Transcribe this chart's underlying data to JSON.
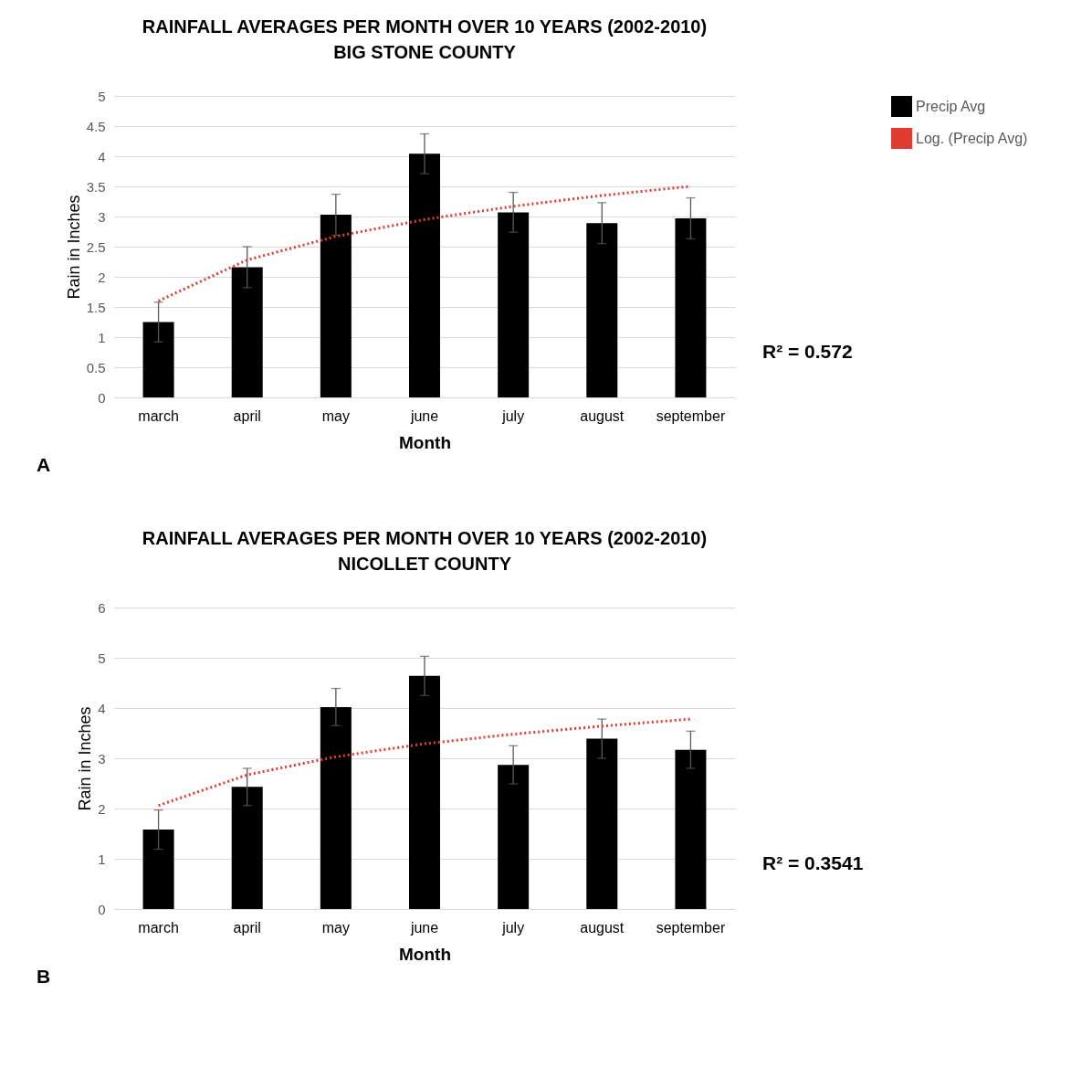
{
  "chart_data": [
    {
      "type": "bar",
      "title": "RAINFALL AVERAGES PER MONTH OVER 10 YEARS (2002-2010)",
      "subtitle": "BIG STONE COUNTY",
      "xlabel": "Month",
      "ylabel": "Rain in Inches",
      "categories": [
        "march",
        "april",
        "may",
        "june",
        "july",
        "august",
        "september"
      ],
      "series": [
        {
          "name": "Precip Avg",
          "color": "#000000",
          "values": [
            1.25,
            2.16,
            3.03,
            4.04,
            3.07,
            2.89,
            2.97
          ],
          "errors": [
            0.33,
            0.34,
            0.34,
            0.33,
            0.33,
            0.34,
            0.34
          ]
        },
        {
          "name": "Log. (Precip Avg)",
          "type": "line",
          "color": "#e03c31",
          "line_style": "dotted",
          "values": [
            1.6,
            2.28,
            2.67,
            2.95,
            3.17,
            3.35,
            3.5
          ]
        }
      ],
      "ylim": [
        0,
        5
      ],
      "yticks": [
        0,
        0.5,
        1,
        1.5,
        2,
        2.5,
        3,
        3.5,
        4,
        4.5,
        5
      ],
      "grid": "y",
      "legend": "right",
      "annotations": [
        "R² = 0.572",
        "A"
      ]
    },
    {
      "type": "bar",
      "title": "RAINFALL AVERAGES PER MONTH OVER 10 YEARS (2002-2010)",
      "subtitle": "NICOLLET COUNTY",
      "xlabel": "Month",
      "ylabel": "Rain in Inches",
      "categories": [
        "march",
        "april",
        "may",
        "june",
        "july",
        "august",
        "september"
      ],
      "series": [
        {
          "name": "Precip Avg",
          "color": "#000000",
          "values": [
            1.58,
            2.43,
            4.02,
            4.64,
            2.87,
            3.39,
            3.17
          ],
          "errors": [
            0.39,
            0.37,
            0.37,
            0.39,
            0.38,
            0.39,
            0.37
          ]
        },
        {
          "name": "Log. (Precip Avg)",
          "type": "line",
          "color": "#e03c31",
          "line_style": "dotted",
          "values": [
            2.06,
            2.67,
            3.03,
            3.29,
            3.48,
            3.64,
            3.78
          ]
        }
      ],
      "ylim": [
        0,
        6
      ],
      "yticks": [
        0,
        1,
        2,
        3,
        4,
        5,
        6
      ],
      "grid": "y",
      "legend": "right",
      "annotations": [
        "R² = 0.3541",
        "B"
      ]
    }
  ]
}
